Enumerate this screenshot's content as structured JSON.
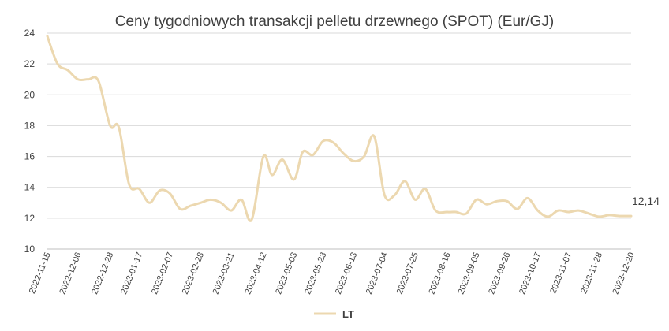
{
  "chart_data": {
    "type": "line",
    "title": "Ceny tygodniowych transakcji pelletu drzewnego (SPOT) (Eur/GJ)",
    "xlabel": "",
    "ylabel": "",
    "ylim": [
      10,
      24
    ],
    "yticks": [
      10,
      12,
      14,
      16,
      18,
      20,
      22,
      24
    ],
    "grid": true,
    "legend_position": "bottom",
    "x_tick_labels": [
      "2022-11-15",
      "2022-12-06",
      "2022-12-28",
      "2023-01-17",
      "2023-02-07",
      "2023-02-28",
      "2023-03-21",
      "2023-04-12",
      "2023-05-03",
      "2023-05-23",
      "2023-06-13",
      "2023-07-04",
      "2023-07-25",
      "2023-08-16",
      "2023-09-05",
      "2023-09-26",
      "2023-10-17",
      "2023-11-07",
      "2023-11-28",
      "2023-12-20"
    ],
    "end_label": "12,14",
    "series": [
      {
        "name": "LT",
        "color": "#ecd8b0",
        "x": [
          "2022-11-15",
          "2022-11-22",
          "2022-11-29",
          "2022-12-06",
          "2022-12-13",
          "2022-12-20",
          "2022-12-28",
          "2023-01-03",
          "2023-01-10",
          "2023-01-17",
          "2023-01-24",
          "2023-01-31",
          "2023-02-07",
          "2023-02-14",
          "2023-02-21",
          "2023-02-28",
          "2023-03-07",
          "2023-03-14",
          "2023-03-21",
          "2023-03-28",
          "2023-04-04",
          "2023-04-12",
          "2023-04-18",
          "2023-04-25",
          "2023-05-03",
          "2023-05-09",
          "2023-05-16",
          "2023-05-23",
          "2023-05-30",
          "2023-06-06",
          "2023-06-13",
          "2023-06-20",
          "2023-06-27",
          "2023-07-04",
          "2023-07-11",
          "2023-07-18",
          "2023-07-25",
          "2023-08-01",
          "2023-08-08",
          "2023-08-16",
          "2023-08-22",
          "2023-08-29",
          "2023-09-05",
          "2023-09-12",
          "2023-09-19",
          "2023-09-26",
          "2023-10-03",
          "2023-10-10",
          "2023-10-17",
          "2023-10-24",
          "2023-10-31",
          "2023-11-07",
          "2023-11-14",
          "2023-11-21",
          "2023-11-28",
          "2023-12-05",
          "2023-12-12",
          "2023-12-20"
        ],
        "values": [
          23.8,
          22.0,
          21.6,
          21.0,
          21.0,
          20.9,
          18.0,
          17.9,
          14.2,
          13.9,
          13.0,
          13.8,
          13.6,
          12.6,
          12.8,
          13.0,
          13.2,
          13.0,
          12.5,
          13.2,
          11.9,
          16.0,
          14.8,
          15.8,
          14.5,
          16.3,
          16.1,
          17.0,
          16.9,
          16.2,
          15.7,
          16.0,
          17.3,
          13.5,
          13.5,
          14.4,
          13.2,
          13.9,
          12.5,
          12.4,
          12.4,
          12.3,
          13.2,
          12.9,
          13.1,
          13.1,
          12.6,
          13.3,
          12.5,
          12.1,
          12.5,
          12.4,
          12.5,
          12.3,
          12.1,
          12.2,
          12.14,
          12.14
        ]
      }
    ]
  }
}
